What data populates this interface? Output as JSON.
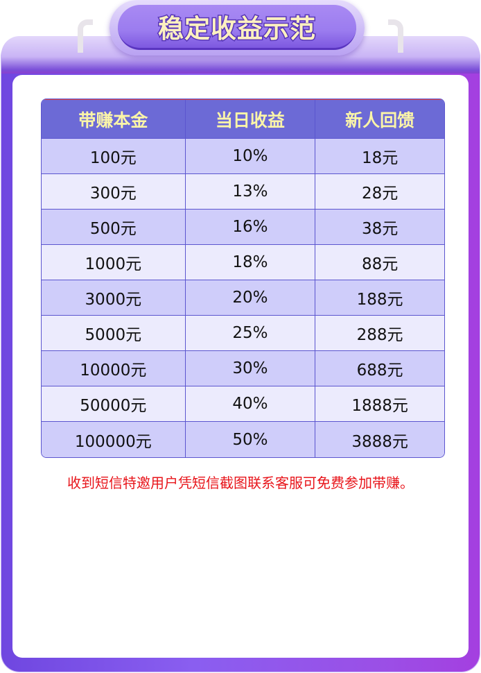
{
  "title": "稳定收益示范",
  "table": {
    "headers": [
      "带赚本金",
      "当日收益",
      "新人回馈"
    ],
    "rows": [
      [
        "100元",
        "10%",
        "18元"
      ],
      [
        "300元",
        "13%",
        "28元"
      ],
      [
        "500元",
        "16%",
        "38元"
      ],
      [
        "1000元",
        "18%",
        "88元"
      ],
      [
        "3000元",
        "20%",
        "188元"
      ],
      [
        "5000元",
        "25%",
        "288元"
      ],
      [
        "10000元",
        "30%",
        "688元"
      ],
      [
        "50000元",
        "40%",
        "1888元"
      ],
      [
        "100000元",
        "50%",
        "3888元"
      ]
    ]
  },
  "note": "收到短信特邀用户凭短信截图联系客服可免费参加带赚。",
  "colors": {
    "header_bg": "#6c6ad6",
    "header_text": "#fbf5a8",
    "row_odd": "#cfcdfa",
    "row_even": "#ecebfd",
    "note": "#e8141a",
    "frame": "#8a5ef0"
  }
}
